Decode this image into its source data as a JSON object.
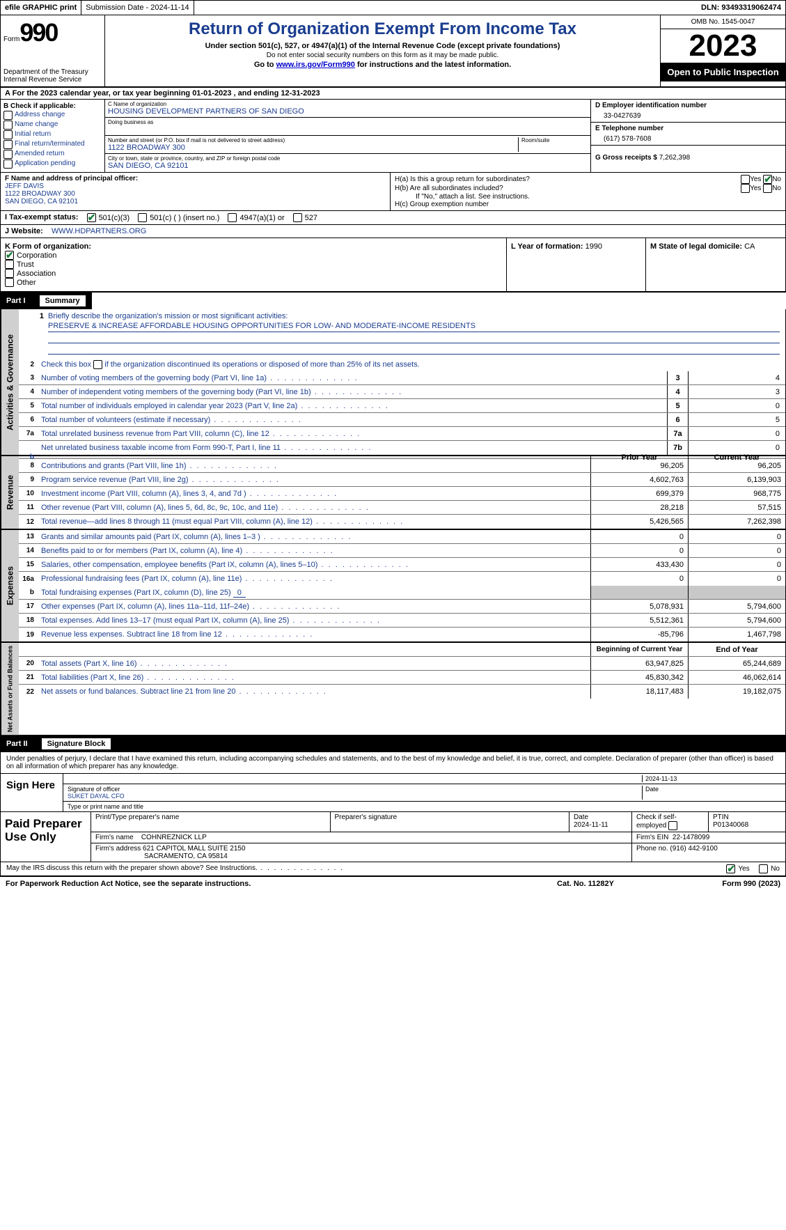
{
  "topbar": {
    "efile": "efile GRAPHIC print",
    "submission": "Submission Date - 2024-11-14",
    "dln": "DLN: 93493319062474"
  },
  "header": {
    "form_label": "Form",
    "form_num": "990",
    "dept": "Department of the Treasury Internal Revenue Service",
    "title": "Return of Organization Exempt From Income Tax",
    "sub1": "Under section 501(c), 527, or 4947(a)(1) of the Internal Revenue Code (except private foundations)",
    "sub2": "Do not enter social security numbers on this form as it may be made public.",
    "sub3_prefix": "Go to ",
    "sub3_link": "www.irs.gov/Form990",
    "sub3_suffix": " for instructions and the latest information.",
    "omb": "OMB No. 1545-0047",
    "year": "2023",
    "open": "Open to Public Inspection"
  },
  "line_a": "A  For the 2023 calendar year, or tax year beginning 01-01-2023   , and ending 12-31-2023",
  "box_b": {
    "title": "B  Check if applicable:",
    "opts": [
      "Address change",
      "Name change",
      "Initial return",
      "Final return/terminated",
      "Amended return",
      "Application pending"
    ]
  },
  "box_c": {
    "name_lbl": "C Name of organization",
    "name": "HOUSING DEVELOPMENT PARTNERS OF SAN DIEGO",
    "dba_lbl": "Doing business as",
    "addr_lbl": "Number and street (or P.O. box if mail is not delivered to street address)",
    "room_lbl": "Room/suite",
    "addr": "1122 BROADWAY 300",
    "city_lbl": "City or town, state or province, country, and ZIP or foreign postal code",
    "city": "SAN DIEGO, CA  92101"
  },
  "box_d": {
    "ein_lbl": "D  Employer identification number",
    "ein": "33-0427639",
    "tel_lbl": "E  Telephone number",
    "tel": "(617) 578-7608",
    "gross_lbl": "G  Gross receipts $",
    "gross": "7,262,398"
  },
  "box_f": {
    "lbl": "F  Name and address of principal officer:",
    "name": "JEFF DAVIS",
    "addr1": "1122 BROADWAY 300",
    "addr2": "SAN DIEGO, CA  92101"
  },
  "box_h": {
    "ha": "H(a)  Is this a group return for subordinates?",
    "hb": "H(b)  Are all subordinates included?",
    "hnote": "If \"No,\" attach a list. See instructions.",
    "hc": "H(c)  Group exemption number"
  },
  "box_i": {
    "lbl": "I  Tax-exempt status:",
    "o501c3": "501(c)(3)",
    "o501c": "501(c) (  ) (insert no.)",
    "o4947": "4947(a)(1) or",
    "o527": "527"
  },
  "box_j": {
    "lbl": "J  Website:",
    "val": "WWW.HDPARTNERS.ORG"
  },
  "box_k": {
    "lbl": "K  Form of organization:",
    "corp": "Corporation",
    "trust": "Trust",
    "assoc": "Association",
    "other": "Other",
    "year_lbl": "L  Year of formation:",
    "year": "1990",
    "state_lbl": "M  State of legal domicile:",
    "state": "CA"
  },
  "part1": {
    "hdr": "Part I",
    "title": "Summary",
    "l1": "Briefly describe the organization's mission or most significant activities:",
    "mission": "PRESERVE & INCREASE AFFORDABLE HOUSING OPPORTUNITIES FOR LOW- AND MODERATE-INCOME RESIDENTS",
    "l2": "Check this box         if the organization discontinued its operations or disposed of more than 25% of its net assets.",
    "sidebar_ag": "Activities & Governance",
    "sidebar_rev": "Revenue",
    "sidebar_exp": "Expenses",
    "sidebar_na": "Net Assets or Fund Balances"
  },
  "rows_ag": [
    {
      "n": "3",
      "d": "Number of voting members of the governing body (Part VI, line 1a)",
      "box": "3",
      "v": "4"
    },
    {
      "n": "4",
      "d": "Number of independent voting members of the governing body (Part VI, line 1b)",
      "box": "4",
      "v": "3"
    },
    {
      "n": "5",
      "d": "Total number of individuals employed in calendar year 2023 (Part V, line 2a)",
      "box": "5",
      "v": "0"
    },
    {
      "n": "6",
      "d": "Total number of volunteers (estimate if necessary)",
      "box": "6",
      "v": "5"
    },
    {
      "n": "7a",
      "d": "Total unrelated business revenue from Part VIII, column (C), line 12",
      "box": "7a",
      "v": "0"
    },
    {
      "n": "",
      "d": "Net unrelated business taxable income from Form 990-T, Part I, line 11",
      "box": "7b",
      "v": "0"
    }
  ],
  "hdr_rev": {
    "py": "Prior Year",
    "cy": "Current Year"
  },
  "rows_rev": [
    {
      "n": "8",
      "d": "Contributions and grants (Part VIII, line 1h)",
      "py": "96,205",
      "cy": "96,205"
    },
    {
      "n": "9",
      "d": "Program service revenue (Part VIII, line 2g)",
      "py": "4,602,763",
      "cy": "6,139,903"
    },
    {
      "n": "10",
      "d": "Investment income (Part VIII, column (A), lines 3, 4, and 7d )",
      "py": "699,379",
      "cy": "968,775"
    },
    {
      "n": "11",
      "d": "Other revenue (Part VIII, column (A), lines 5, 6d, 8c, 9c, 10c, and 11e)",
      "py": "28,218",
      "cy": "57,515"
    },
    {
      "n": "12",
      "d": "Total revenue—add lines 8 through 11 (must equal Part VIII, column (A), line 12)",
      "py": "5,426,565",
      "cy": "7,262,398"
    }
  ],
  "rows_exp": [
    {
      "n": "13",
      "d": "Grants and similar amounts paid (Part IX, column (A), lines 1–3 )",
      "py": "0",
      "cy": "0"
    },
    {
      "n": "14",
      "d": "Benefits paid to or for members (Part IX, column (A), line 4)",
      "py": "0",
      "cy": "0"
    },
    {
      "n": "15",
      "d": "Salaries, other compensation, employee benefits (Part IX, column (A), lines 5–10)",
      "py": "433,430",
      "cy": "0"
    },
    {
      "n": "16a",
      "d": "Professional fundraising fees (Part IX, column (A), line 11e)",
      "py": "0",
      "cy": "0"
    }
  ],
  "row_16b": {
    "n": "b",
    "d": "Total fundraising expenses (Part IX, column (D), line 25)",
    "u": "0"
  },
  "rows_exp2": [
    {
      "n": "17",
      "d": "Other expenses (Part IX, column (A), lines 11a–11d, 11f–24e)",
      "py": "5,078,931",
      "cy": "5,794,600"
    },
    {
      "n": "18",
      "d": "Total expenses. Add lines 13–17 (must equal Part IX, column (A), line 25)",
      "py": "5,512,361",
      "cy": "5,794,600"
    },
    {
      "n": "19",
      "d": "Revenue less expenses. Subtract line 18 from line 12",
      "py": "-85,796",
      "cy": "1,467,798"
    }
  ],
  "hdr_na": {
    "py": "Beginning of Current Year",
    "cy": "End of Year"
  },
  "rows_na": [
    {
      "n": "20",
      "d": "Total assets (Part X, line 16)",
      "py": "63,947,825",
      "cy": "65,244,689"
    },
    {
      "n": "21",
      "d": "Total liabilities (Part X, line 26)",
      "py": "45,830,342",
      "cy": "46,062,614"
    },
    {
      "n": "22",
      "d": "Net assets or fund balances. Subtract line 21 from line 20",
      "py": "18,117,483",
      "cy": "19,182,075"
    }
  ],
  "part2": {
    "hdr": "Part II",
    "title": "Signature Block"
  },
  "sig": {
    "declare": "Under penalties of perjury, I declare that I have examined this return, including accompanying schedules and statements, and to the best of my knowledge and belief, it is true, correct, and complete. Declaration of preparer (other than officer) is based on all information of which preparer has any knowledge.",
    "sign_here": "Sign Here",
    "date": "2024-11-13",
    "sig_lbl": "Signature of officer",
    "officer": "SUKET DAYAL CFO",
    "name_lbl": "Type or print name and title",
    "date_lbl": "Date"
  },
  "prep": {
    "title": "Paid Preparer Use Only",
    "name_lbl": "Print/Type preparer's name",
    "sig_lbl": "Preparer's signature",
    "date_lbl": "Date",
    "date": "2024-11-11",
    "chk_lbl": "Check          if self-employed",
    "ptin_lbl": "PTIN",
    "ptin": "P01340068",
    "firm_lbl": "Firm's name",
    "firm": "COHNREZNICK LLP",
    "ein_lbl": "Firm's EIN",
    "ein": "22-1478099",
    "addr_lbl": "Firm's address",
    "addr1": "621 CAPITOL MALL SUITE 2150",
    "addr2": "SACRAMENTO, CA  95814",
    "phone_lbl": "Phone no.",
    "phone": "(916) 442-9100"
  },
  "footer": {
    "discuss": "May the IRS discuss this return with the preparer shown above? See Instructions.",
    "yes": "Yes",
    "no": "No",
    "paperwork": "For Paperwork Reduction Act Notice, see the separate instructions.",
    "catno": "Cat. No. 11282Y",
    "formno": "Form 990 (2023)"
  }
}
